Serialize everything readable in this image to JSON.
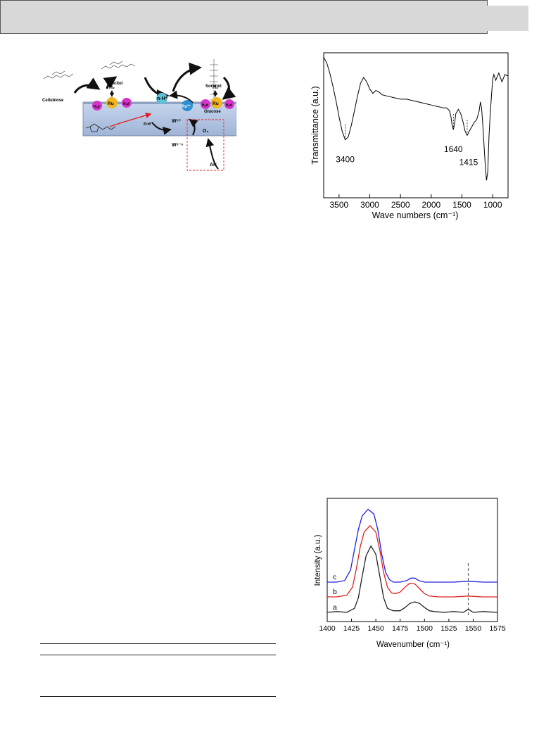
{
  "scheme": {
    "labels": {
      "cellubiose": "Cellubiose",
      "glucitol": "Glucitol",
      "sorbitol": "Sorbitol",
      "glucose": "Glucose",
      "h2_left": "H₂",
      "h2_right": "H₂",
      "ru_left": "Ru",
      "ru_right": "Ru",
      "ru3": "Ru³⁺",
      "had1": "Hₐd",
      "had2": "Hₐd",
      "had3": "Hₐd",
      "had4": "Hₐd",
      "nh": "n-H⁺",
      "ne": "n-e⁻",
      "w6": "W⁶⁺",
      "w6n": "W⁶⁻ⁿ",
      "o2": "O₂",
      "air": "Air"
    },
    "colors": {
      "h_ad": "#d633c9",
      "ru": "#f2b622",
      "ru3": "#2b8fd1",
      "nh": "#5fc0d8",
      "support": "#c2d3ec"
    }
  },
  "ftir": {
    "chart_data": {
      "type": "line",
      "xlabel": "Wave numbers (cm⁻¹)",
      "ylabel": "Transmittance (a.u.)",
      "xlim": [
        3750,
        750
      ],
      "x_ticks": [
        "3500",
        "3000",
        "2500",
        "2000",
        "1500",
        "1000"
      ],
      "x_tick_values": [
        3500,
        3000,
        2500,
        2000,
        1500,
        1000
      ],
      "series": [
        {
          "x": [
            3750,
            3700,
            3650,
            3600,
            3550,
            3500,
            3450,
            3400,
            3350,
            3300,
            3250,
            3200,
            3150,
            3100,
            3050,
            3000,
            2950,
            2900,
            2850,
            2800,
            2700,
            2600,
            2500,
            2400,
            2300,
            2200,
            2100,
            2000,
            1900,
            1800,
            1750,
            1700,
            1680,
            1660,
            1640,
            1620,
            1600,
            1560,
            1520,
            1480,
            1450,
            1415,
            1380,
            1340,
            1300,
            1260,
            1220,
            1200,
            1180,
            1160,
            1140,
            1120,
            1100,
            1080,
            1060,
            1040,
            1020,
            1000,
            980,
            950,
            900,
            850,
            800,
            750
          ],
          "y": [
            0.97,
            0.93,
            0.86,
            0.77,
            0.67,
            0.56,
            0.46,
            0.4,
            0.42,
            0.5,
            0.6,
            0.7,
            0.79,
            0.83,
            0.8,
            0.75,
            0.72,
            0.74,
            0.73,
            0.71,
            0.7,
            0.69,
            0.68,
            0.68,
            0.67,
            0.66,
            0.65,
            0.64,
            0.63,
            0.62,
            0.62,
            0.6,
            0.56,
            0.5,
            0.47,
            0.51,
            0.58,
            0.61,
            0.58,
            0.52,
            0.46,
            0.43,
            0.46,
            0.49,
            0.52,
            0.54,
            0.6,
            0.66,
            0.62,
            0.5,
            0.36,
            0.22,
            0.12,
            0.18,
            0.42,
            0.58,
            0.7,
            0.82,
            0.85,
            0.81,
            0.86,
            0.8,
            0.85,
            0.84
          ]
        }
      ],
      "annotations": [
        {
          "x": 3400,
          "text": "3400"
        },
        {
          "x": 1640,
          "text": "1640"
        },
        {
          "x": 1415,
          "text": "1415"
        }
      ]
    }
  },
  "raman": {
    "chart_data": {
      "type": "line",
      "xlabel": "Wavenumber (cm⁻¹)",
      "ylabel": "Intensity (a.u.)",
      "xlim": [
        1400,
        1575
      ],
      "x_ticks": [
        "1400",
        "1425",
        "1450",
        "1475",
        "1500",
        "1525",
        "1550",
        "1575"
      ],
      "x_tick_values": [
        1400,
        1425,
        1450,
        1475,
        1500,
        1525,
        1550,
        1575
      ],
      "dashed_line_x": 1545,
      "series": [
        {
          "name": "a",
          "color": "#222222",
          "x": [
            1400,
            1410,
            1420,
            1428,
            1432,
            1436,
            1440,
            1445,
            1450,
            1454,
            1458,
            1462,
            1468,
            1475,
            1480,
            1485,
            1490,
            1495,
            1500,
            1505,
            1510,
            1520,
            1530,
            1540,
            1545,
            1550,
            1560,
            1575
          ],
          "y": [
            0.0,
            0.01,
            0.0,
            0.05,
            0.18,
            0.45,
            0.7,
            0.82,
            0.72,
            0.45,
            0.18,
            0.05,
            0.02,
            0.02,
            0.06,
            0.11,
            0.13,
            0.11,
            0.06,
            0.02,
            0.01,
            0.0,
            0.01,
            0.0,
            0.04,
            0.0,
            0.01,
            0.0
          ]
        },
        {
          "name": "b",
          "color": "#e02020",
          "x": [
            1400,
            1410,
            1420,
            1426,
            1430,
            1434,
            1438,
            1444,
            1450,
            1454,
            1458,
            1462,
            1466,
            1470,
            1475,
            1480,
            1485,
            1490,
            1495,
            1500,
            1505,
            1515,
            1530,
            1545,
            1560,
            1575
          ],
          "y": [
            0.0,
            0.0,
            0.02,
            0.12,
            0.35,
            0.62,
            0.8,
            0.88,
            0.8,
            0.58,
            0.3,
            0.12,
            0.05,
            0.04,
            0.06,
            0.12,
            0.17,
            0.16,
            0.1,
            0.04,
            0.01,
            0.0,
            0.0,
            0.01,
            0.0,
            0.0
          ]
        },
        {
          "name": "c",
          "color": "#2020e0",
          "x": [
            1400,
            1410,
            1418,
            1424,
            1428,
            1432,
            1436,
            1442,
            1448,
            1452,
            1456,
            1460,
            1464,
            1468,
            1475,
            1482,
            1486,
            1490,
            1494,
            1500,
            1510,
            1530,
            1545,
            1560,
            1575
          ],
          "y": [
            0.0,
            0.0,
            0.02,
            0.15,
            0.4,
            0.65,
            0.82,
            0.9,
            0.84,
            0.65,
            0.35,
            0.12,
            0.03,
            0.0,
            0.0,
            0.02,
            0.05,
            0.05,
            0.02,
            0.0,
            0.0,
            0.0,
            0.01,
            0.0,
            0.0
          ]
        }
      ]
    }
  }
}
